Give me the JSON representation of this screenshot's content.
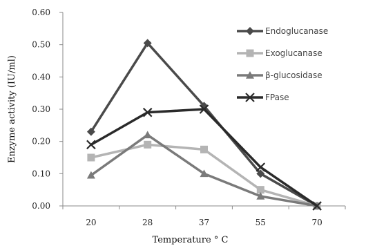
{
  "chart_data": {
    "type": "line",
    "categories": [
      "20",
      "28",
      "37",
      "55",
      "70"
    ],
    "xlabel": "Temperature ° C",
    "ylabel": "Enzyme activity (IU/ml)",
    "ylim": [
      0,
      0.6
    ],
    "yticks": [
      "0.00",
      "0.10",
      "0.20",
      "0.30",
      "0.40",
      "0.50",
      "0.60"
    ],
    "grid": false,
    "legend_position": "top-right",
    "series": [
      {
        "name": "Endoglucanase",
        "values": [
          0.23,
          0.505,
          0.31,
          0.1,
          0.0
        ],
        "color": "#4a4a4a",
        "marker": "diamond"
      },
      {
        "name": "Exoglucanase",
        "values": [
          0.15,
          0.19,
          0.175,
          0.05,
          0.0
        ],
        "color": "#b4b4b4",
        "marker": "square"
      },
      {
        "name": "β-glucosidase",
        "values": [
          0.095,
          0.22,
          0.1,
          0.03,
          0.0
        ],
        "color": "#7a7a7a",
        "marker": "triangle"
      },
      {
        "name": "FPase",
        "values": [
          0.19,
          0.29,
          0.3,
          0.12,
          0.0
        ],
        "color": "#2a2a2a",
        "marker": "x"
      }
    ]
  }
}
